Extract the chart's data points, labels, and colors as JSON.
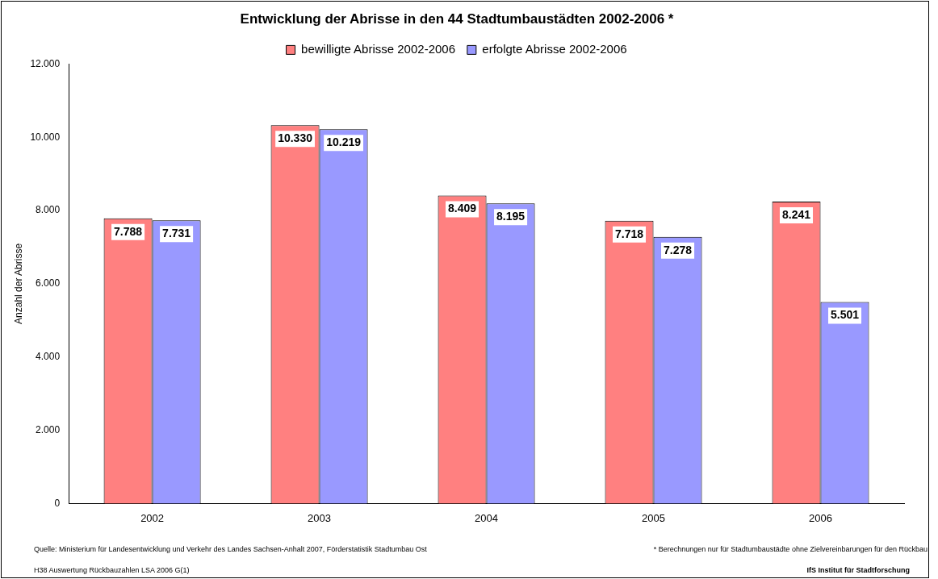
{
  "chart_data": {
    "type": "bar",
    "title": "Entwicklung der Abrisse in den 44 Stadtumbaustädten 2002-2006 *",
    "ylabel": "Anzahl der Abrisse",
    "categories": [
      "2002",
      "2003",
      "2004",
      "2005",
      "2006"
    ],
    "series": [
      {
        "name": "bewilligte Abrisse 2002-2006",
        "color": "#ff8080",
        "values": [
          7788,
          10330,
          8409,
          7718,
          8241
        ],
        "value_labels": [
          "7.788",
          "10.330",
          "8.409",
          "7.718",
          "8.241"
        ]
      },
      {
        "name": "erfolgte Abrisse 2002-2006",
        "color": "#9999ff",
        "values": [
          7731,
          10219,
          8195,
          7278,
          5501
        ],
        "value_labels": [
          "7.731",
          "10.219",
          "8.195",
          "7.278",
          "5.501"
        ]
      }
    ],
    "ylim": [
      0,
      12000
    ],
    "yticks": [
      {
        "value": 0,
        "label": "0"
      },
      {
        "value": 2000,
        "label": "2.000"
      },
      {
        "value": 4000,
        "label": "4.000"
      },
      {
        "value": 6000,
        "label": "6.000"
      },
      {
        "value": 8000,
        "label": "8.000"
      },
      {
        "value": 10000,
        "label": "10.000"
      },
      {
        "value": 12000,
        "label": "12.000"
      }
    ],
    "grid": false,
    "legend": "top",
    "annotations": [
      "Quelle: Ministerium für Landesentwicklung und Verkehr des Landes Sachsen-Anhalt 2007, Förderstatistik Stadtumbau Ost",
      "H38 Auswertung Rückbauzahlen LSA 2006 G(1)",
      "* Berechnungen nur für Stadtumbaustädte ohne Zielvereinbarungen für den Rückbau",
      "IfS Institut für Stadtforschung"
    ]
  }
}
